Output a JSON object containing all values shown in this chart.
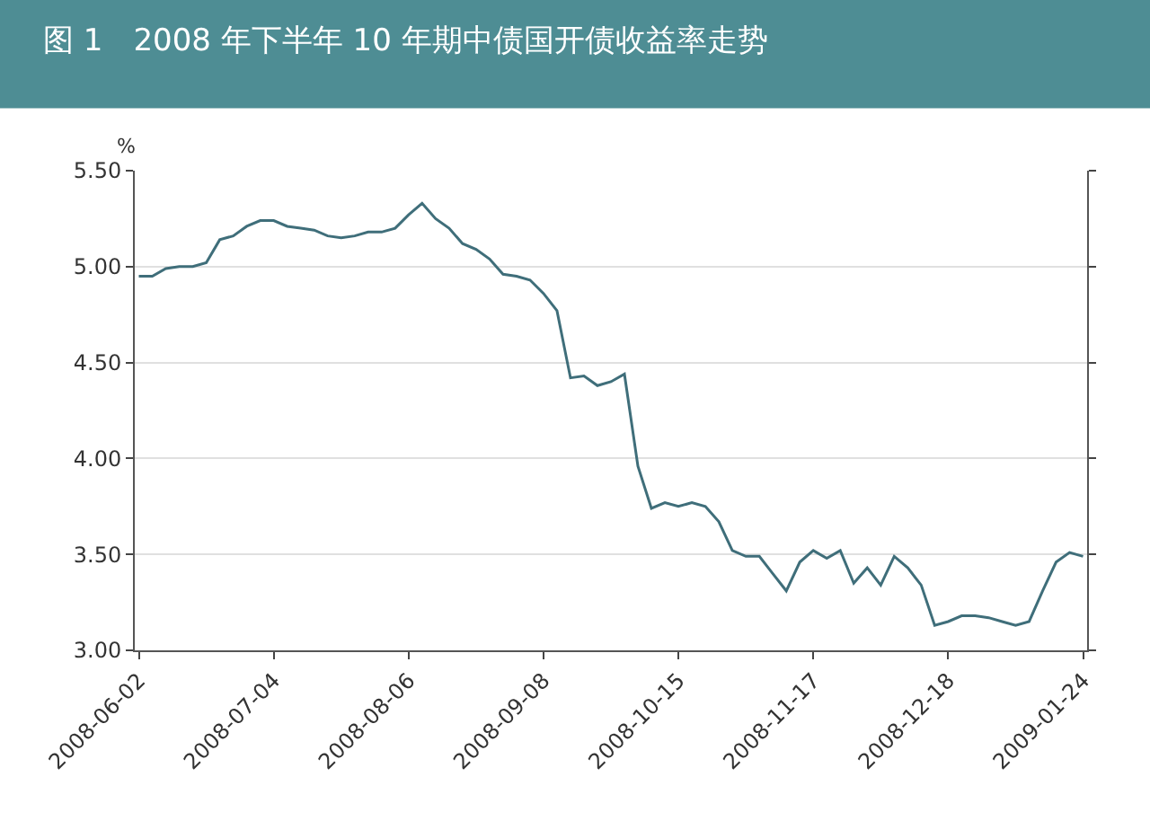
{
  "chart_data": {
    "type": "line",
    "title": "图 1　2008 年下半年 10 年期中债国开债收益率走势",
    "ylabel": "%",
    "categories": [
      "2008-06-02",
      null,
      null,
      null,
      null,
      null,
      null,
      null,
      null,
      null,
      "2008-07-04",
      null,
      null,
      null,
      null,
      null,
      null,
      null,
      null,
      null,
      "2008-08-06",
      null,
      null,
      null,
      null,
      null,
      null,
      null,
      null,
      null,
      "2008-09-08",
      null,
      null,
      null,
      null,
      null,
      null,
      null,
      null,
      null,
      "2008-10-15",
      null,
      null,
      null,
      null,
      null,
      null,
      null,
      null,
      null,
      "2008-11-17",
      null,
      null,
      null,
      null,
      null,
      null,
      null,
      null,
      null,
      "2008-12-18",
      null,
      null,
      null,
      null,
      null,
      null,
      null,
      null,
      null,
      "2009-01-24"
    ],
    "series": [
      {
        "color": "#3f6e7a",
        "values": [
          4.95,
          4.95,
          4.99,
          5.0,
          5.0,
          5.02,
          5.14,
          5.16,
          5.21,
          5.24,
          5.24,
          5.21,
          5.2,
          5.19,
          5.16,
          5.15,
          5.16,
          5.18,
          5.18,
          5.2,
          5.27,
          5.33,
          5.25,
          5.2,
          5.12,
          5.09,
          5.04,
          4.96,
          4.95,
          4.93,
          4.86,
          4.77,
          4.42,
          4.43,
          4.38,
          4.4,
          4.44,
          3.96,
          3.74,
          3.77,
          3.75,
          3.77,
          3.75,
          3.67,
          3.52,
          3.49,
          3.49,
          3.4,
          3.31,
          3.46,
          3.52,
          3.48,
          3.52,
          3.35,
          3.43,
          3.34,
          3.49,
          3.43,
          3.34,
          3.13,
          3.15,
          3.18,
          3.18,
          3.17,
          3.15,
          3.13,
          3.15,
          3.31,
          3.46,
          3.51,
          3.49
        ]
      }
    ],
    "ylim": [
      3.0,
      5.5
    ],
    "yticks": [
      {
        "value": 3.0,
        "label": "3.00"
      },
      {
        "value": 3.5,
        "label": "3.50"
      },
      {
        "value": 4.0,
        "label": "4.00"
      },
      {
        "value": 4.5,
        "label": "4.50"
      },
      {
        "value": 5.0,
        "label": "5.00"
      },
      {
        "value": 5.5,
        "label": "5.50"
      }
    ],
    "grid": "y",
    "legend": false,
    "marker": "none",
    "line_style": "solid"
  }
}
